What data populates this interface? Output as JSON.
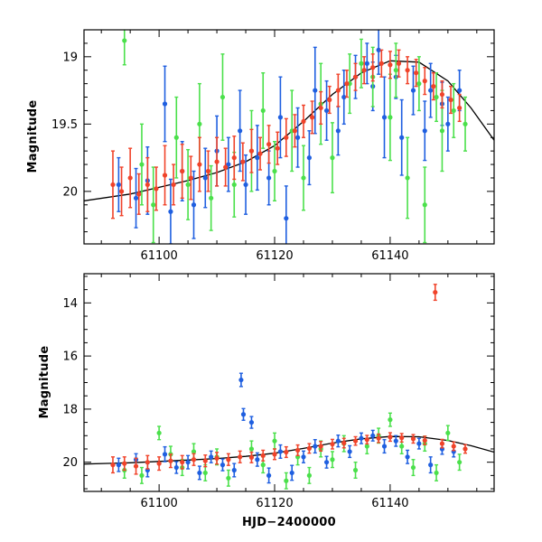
{
  "chart_data": [
    {
      "type": "scatter",
      "panel": "top",
      "title": "",
      "xlabel": "",
      "ylabel": "Magnitude",
      "xlim": [
        61087,
        61158
      ],
      "ylim": [
        20.39,
        18.8
      ],
      "y_inverted": true,
      "x_ticks": [
        61100,
        61120,
        61140
      ],
      "y_ticks": [
        19,
        19.5,
        20
      ],
      "y_tick_labels": [
        "19",
        "19.5",
        "20"
      ],
      "x_tick_labels": [
        "61100",
        "61120",
        "61140"
      ],
      "legend": "none",
      "colors": {
        "blue": "#1f5fe0",
        "green": "#4be04b",
        "red": "#f0432a",
        "model": "#000000"
      },
      "model_curve": {
        "x": [
          61087,
          61095,
          61100,
          61105,
          61110,
          61115,
          61120,
          61125,
          61130,
          61135,
          61140,
          61145,
          61150,
          61154,
          61158
        ],
        "y": [
          20.07,
          20.02,
          19.97,
          19.92,
          19.86,
          19.78,
          19.66,
          19.48,
          19.28,
          19.12,
          19.03,
          19.04,
          19.18,
          19.38,
          19.62
        ]
      },
      "series": [
        {
          "name": "blue",
          "color": "#1f5fe0",
          "x": [
            61093,
            61096,
            61098,
            61101,
            61102,
            61104,
            61106,
            61108,
            61110,
            61112,
            61114,
            61115,
            61117,
            61119,
            61121,
            61122,
            61124,
            61126,
            61127,
            61129,
            61131,
            61132,
            61134,
            61136,
            61137,
            61138,
            61139,
            61141,
            61142,
            61144,
            61146,
            61147,
            61149,
            61150,
            61152
          ],
          "y": [
            19.95,
            20.05,
            19.92,
            19.35,
            20.15,
            19.85,
            20.1,
            19.9,
            19.7,
            19.8,
            19.55,
            19.95,
            19.75,
            19.9,
            19.45,
            20.2,
            19.6,
            19.75,
            19.25,
            19.4,
            19.55,
            19.3,
            19.15,
            19.05,
            19.22,
            18.95,
            19.45,
            19.15,
            19.6,
            19.25,
            19.55,
            19.25,
            19.35,
            19.5,
            19.25
          ],
          "err": [
            0.2,
            0.22,
            0.25,
            0.28,
            0.24,
            0.22,
            0.25,
            0.22,
            0.26,
            0.2,
            0.3,
            0.22,
            0.24,
            0.2,
            0.3,
            0.24,
            0.22,
            0.2,
            0.32,
            0.22,
            0.18,
            0.2,
            0.16,
            0.15,
            0.18,
            0.18,
            0.3,
            0.16,
            0.28,
            0.18,
            0.22,
            0.2,
            0.16,
            0.2,
            0.15
          ]
        },
        {
          "name": "green",
          "color": "#4be04b",
          "x": [
            61094,
            61097,
            61099,
            61103,
            61105,
            61107,
            61109,
            61111,
            61113,
            61116,
            61118,
            61120,
            61123,
            61125,
            61128,
            61130,
            61133,
            61135,
            61137,
            61140,
            61141,
            61143,
            61145,
            61146,
            61148,
            61149,
            61151,
            61153
          ],
          "y": [
            18.88,
            19.8,
            20.1,
            19.6,
            19.95,
            19.5,
            20.05,
            19.3,
            19.95,
            19.7,
            19.4,
            19.85,
            19.55,
            19.9,
            19.35,
            19.75,
            19.2,
            19.05,
            19.15,
            19.45,
            19.1,
            19.9,
            19.2,
            20.1,
            19.3,
            19.55,
            19.4,
            19.5
          ],
          "err": [
            0.18,
            0.3,
            0.28,
            0.3,
            0.26,
            0.3,
            0.24,
            0.32,
            0.24,
            0.3,
            0.28,
            0.22,
            0.3,
            0.24,
            0.3,
            0.26,
            0.22,
            0.18,
            0.22,
            0.32,
            0.2,
            0.3,
            0.2,
            0.28,
            0.18,
            0.3,
            0.2,
            0.2
          ]
        },
        {
          "name": "red",
          "color": "#f0432a",
          "x": [
            61092,
            61093.5,
            61095,
            61096.5,
            61098,
            61099.5,
            61101,
            61102.5,
            61104,
            61105.5,
            61107,
            61108.5,
            61110,
            61111.5,
            61113,
            61114.5,
            61116,
            61117.5,
            61119,
            61120.5,
            61122,
            61123.5,
            61125,
            61126.5,
            61128,
            61129.5,
            61131,
            61132.5,
            61134,
            61135.5,
            61137,
            61138.5,
            61140,
            61141.5,
            61143,
            61144.5,
            61146,
            61147.5,
            61149,
            61150.5,
            61152
          ],
          "y": [
            19.95,
            20.0,
            19.9,
            20.02,
            19.95,
            19.98,
            19.88,
            19.95,
            19.85,
            19.9,
            19.8,
            19.85,
            19.78,
            19.82,
            19.75,
            19.78,
            19.7,
            19.72,
            19.65,
            19.68,
            19.6,
            19.55,
            19.48,
            19.45,
            19.38,
            19.32,
            19.25,
            19.2,
            19.15,
            19.1,
            19.08,
            19.05,
            19.06,
            19.05,
            19.1,
            19.12,
            19.18,
            19.22,
            19.28,
            19.32,
            19.38
          ],
          "err": [
            0.25,
            0.18,
            0.22,
            0.15,
            0.2,
            0.16,
            0.22,
            0.15,
            0.2,
            0.16,
            0.2,
            0.15,
            0.18,
            0.14,
            0.16,
            0.14,
            0.16,
            0.12,
            0.14,
            0.12,
            0.14,
            0.12,
            0.12,
            0.12,
            0.12,
            0.1,
            0.12,
            0.1,
            0.1,
            0.1,
            0.1,
            0.1,
            0.1,
            0.1,
            0.1,
            0.1,
            0.1,
            0.1,
            0.1,
            0.1,
            0.1
          ]
        }
      ]
    },
    {
      "type": "scatter",
      "panel": "bottom",
      "title": "",
      "xlabel": "HJD−2400000",
      "ylabel": "Magnitude",
      "xlim": [
        61087,
        61158
      ],
      "ylim": [
        21.1,
        12.9
      ],
      "y_inverted": true,
      "x_ticks": [
        61100,
        61120,
        61140
      ],
      "y_ticks": [
        14,
        16,
        18,
        20
      ],
      "y_tick_labels": [
        "14",
        "16",
        "18",
        "20"
      ],
      "x_tick_labels": [
        "61100",
        "61120",
        "61140"
      ],
      "legend": "none",
      "model_curve": {
        "x": [
          61087,
          61095,
          61100,
          61105,
          61110,
          61115,
          61120,
          61125,
          61130,
          61135,
          61140,
          61145,
          61150,
          61154,
          61158
        ],
        "y": [
          20.07,
          20.02,
          19.97,
          19.92,
          19.86,
          19.78,
          19.66,
          19.48,
          19.28,
          19.12,
          19.03,
          19.04,
          19.18,
          19.38,
          19.62
        ]
      },
      "series": [
        {
          "name": "blue",
          "color": "#1f5fe0",
          "x": [
            61093,
            61096,
            61098,
            61101,
            61103,
            61105,
            61107,
            61109,
            61111,
            61113,
            61114.2,
            61114.6,
            61116,
            61117,
            61119,
            61121,
            61123,
            61125,
            61127,
            61129,
            61131,
            61133,
            61135,
            61137,
            61139,
            61141,
            61143,
            61145,
            61147,
            61149,
            61151
          ],
          "y": [
            20.1,
            19.9,
            20.3,
            19.7,
            20.2,
            20.0,
            20.4,
            19.8,
            20.1,
            20.3,
            16.9,
            18.2,
            18.5,
            19.9,
            20.5,
            19.6,
            20.4,
            19.8,
            19.4,
            20.0,
            19.2,
            19.6,
            19.1,
            19.0,
            19.4,
            19.2,
            19.8,
            19.3,
            20.1,
            19.5,
            19.6
          ],
          "err": [
            0.25,
            0.22,
            0.25,
            0.28,
            0.22,
            0.25,
            0.25,
            0.22,
            0.22,
            0.25,
            0.25,
            0.22,
            0.22,
            0.25,
            0.28,
            0.25,
            0.28,
            0.22,
            0.25,
            0.22,
            0.22,
            0.22,
            0.2,
            0.2,
            0.25,
            0.2,
            0.25,
            0.2,
            0.3,
            0.2,
            0.2
          ]
        },
        {
          "name": "green",
          "color": "#4be04b",
          "x": [
            61094,
            61097,
            61100,
            61102,
            61104,
            61106,
            61108,
            61110,
            61112,
            61116,
            61118,
            61120,
            61122,
            61124,
            61126,
            61128,
            61130,
            61132,
            61134,
            61136,
            61138,
            61140,
            61142,
            61144,
            61146,
            61148,
            61150,
            61152
          ],
          "y": [
            20.3,
            20.5,
            18.9,
            19.7,
            20.2,
            19.6,
            20.4,
            19.8,
            20.6,
            19.5,
            20.1,
            19.2,
            20.7,
            19.8,
            20.5,
            19.5,
            19.9,
            19.3,
            20.3,
            19.4,
            19.0,
            18.4,
            19.4,
            20.2,
            19.3,
            20.4,
            18.9,
            20.0
          ],
          "err": [
            0.3,
            0.3,
            0.25,
            0.3,
            0.3,
            0.3,
            0.3,
            0.3,
            0.3,
            0.3,
            0.3,
            0.3,
            0.3,
            0.3,
            0.3,
            0.3,
            0.3,
            0.3,
            0.3,
            0.28,
            0.28,
            0.25,
            0.28,
            0.3,
            0.28,
            0.3,
            0.28,
            0.3
          ]
        },
        {
          "name": "red",
          "color": "#f0432a",
          "x": [
            61092,
            61094,
            61096,
            61098,
            61100,
            61102,
            61104,
            61106,
            61108,
            61110,
            61112,
            61114,
            61116,
            61118,
            61120,
            61122,
            61124,
            61126,
            61128,
            61130,
            61132,
            61134,
            61136,
            61138,
            61140,
            61142,
            61144,
            61146,
            61147.8,
            61149,
            61151,
            61153
          ],
          "y": [
            20.1,
            20.05,
            20.15,
            20.0,
            20.05,
            19.95,
            20.0,
            19.9,
            19.95,
            19.85,
            19.9,
            19.8,
            19.82,
            19.75,
            19.7,
            19.62,
            19.55,
            19.48,
            19.4,
            19.32,
            19.28,
            19.2,
            19.15,
            19.1,
            19.05,
            19.08,
            19.12,
            19.18,
            13.6,
            19.3,
            19.4,
            19.5
          ],
          "err": [
            0.3,
            0.25,
            0.3,
            0.25,
            0.25,
            0.25,
            0.25,
            0.22,
            0.22,
            0.22,
            0.22,
            0.22,
            0.2,
            0.2,
            0.2,
            0.2,
            0.2,
            0.18,
            0.18,
            0.18,
            0.18,
            0.16,
            0.16,
            0.16,
            0.16,
            0.16,
            0.16,
            0.16,
            0.3,
            0.16,
            0.16,
            0.16
          ]
        }
      ]
    }
  ]
}
